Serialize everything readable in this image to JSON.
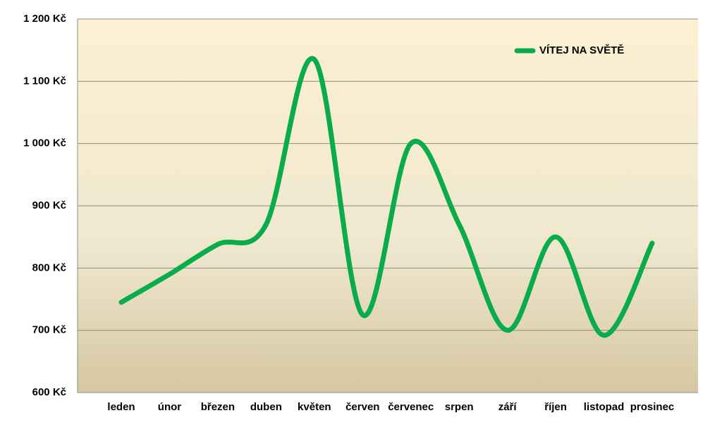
{
  "chart_data": {
    "type": "line",
    "categories": [
      "leden",
      "únor",
      "březen",
      "duben",
      "květen",
      "červen",
      "červenec",
      "srpen",
      "září",
      "říjen",
      "listopad",
      "prosinec"
    ],
    "series": [
      {
        "name": "VÍTEJ NA SVĚTĚ",
        "color": "#0aab4a",
        "values": [
          745,
          790,
          838,
          870,
          1135,
          725,
          1000,
          870,
          700,
          850,
          692,
          840
        ]
      }
    ],
    "ylim": [
      600,
      1200
    ],
    "yticks": [
      {
        "value": 600,
        "label": "600 Kč"
      },
      {
        "value": 700,
        "label": "700 Kč"
      },
      {
        "value": 800,
        "label": "800 Kč"
      },
      {
        "value": 900,
        "label": "900 Kč"
      },
      {
        "value": 1000,
        "label": "1 000 Kč"
      },
      {
        "value": 1100,
        "label": "1 100 Kč"
      },
      {
        "value": 1200,
        "label": "1 200 Kč"
      }
    ],
    "grid": true,
    "smooth": true,
    "legend": "top-right"
  }
}
